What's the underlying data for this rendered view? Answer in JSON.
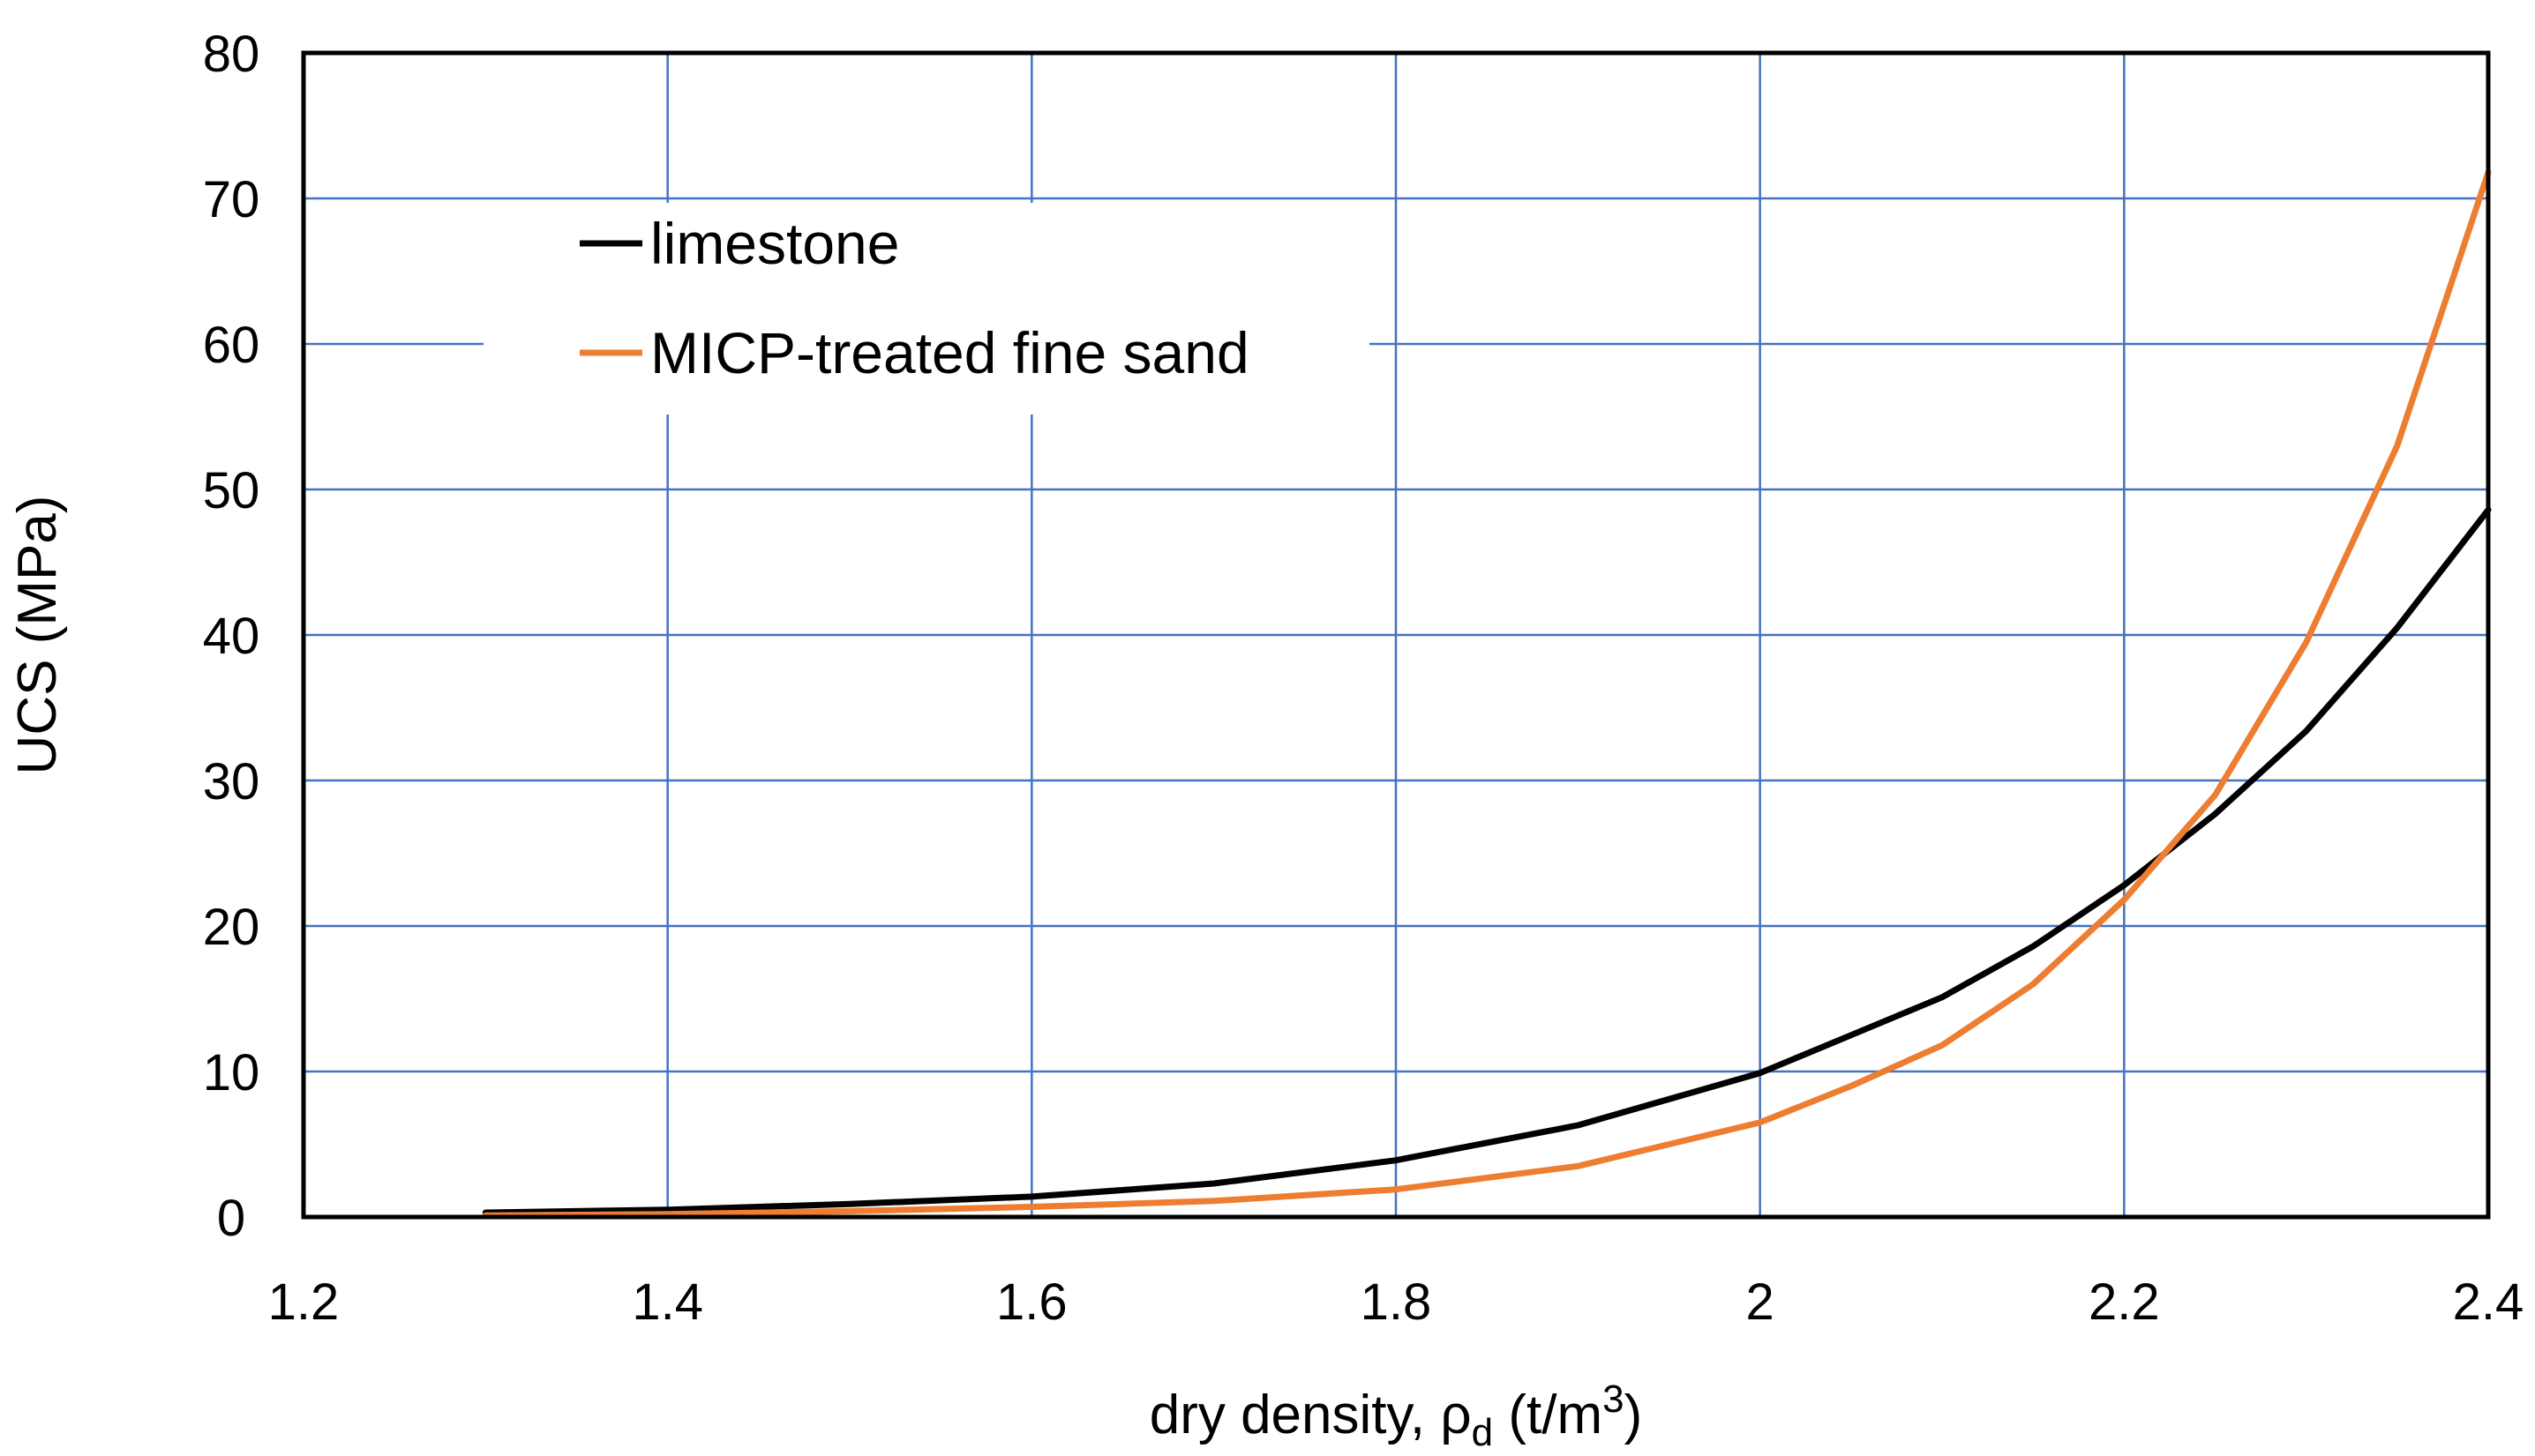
{
  "chart_data": {
    "type": "line",
    "title": "",
    "xlabel": {
      "prefix": "dry density, ",
      "symbol": "ρ",
      "subscript": "d",
      "unit_open": " (t/m",
      "superscript": "3",
      "unit_close": ")"
    },
    "ylabel": "UCS (MPa)",
    "xlim": [
      1.2,
      2.4
    ],
    "ylim": [
      0,
      80
    ],
    "x_ticks": [
      "1.2",
      "1.4",
      "1.6",
      "1.8",
      "2",
      "2.2",
      "2.4"
    ],
    "x_tick_values": [
      1.2,
      1.4,
      1.6,
      1.8,
      2.0,
      2.2,
      2.4
    ],
    "y_ticks": [
      "0",
      "10",
      "20",
      "30",
      "40",
      "50",
      "60",
      "70",
      "80"
    ],
    "y_tick_values": [
      0,
      10,
      20,
      30,
      40,
      50,
      60,
      70,
      80
    ],
    "x_grid_values": [
      1.4,
      1.6,
      1.8,
      2.0,
      2.2
    ],
    "y_grid_values": [
      10,
      20,
      30,
      40,
      50,
      60,
      70
    ],
    "grid": true,
    "grid_color": "#4472c4",
    "legend_position": "top-left",
    "series": [
      {
        "name": "limestone",
        "color": "#000000",
        "x": [
          1.3,
          1.4,
          1.5,
          1.6,
          1.7,
          1.8,
          1.9,
          2.0,
          2.05,
          2.1,
          2.15,
          2.2,
          2.25,
          2.3,
          2.35,
          2.4
        ],
        "y": [
          0.3,
          0.5,
          0.9,
          1.4,
          2.3,
          3.9,
          6.3,
          9.9,
          12.5,
          15.1,
          18.6,
          22.8,
          27.7,
          33.4,
          40.5,
          48.6
        ]
      },
      {
        "name": "MICP-treated fine sand",
        "color": "#ed7d31",
        "x": [
          1.3,
          1.4,
          1.5,
          1.6,
          1.7,
          1.8,
          1.9,
          2.0,
          2.05,
          2.1,
          2.15,
          2.2,
          2.25,
          2.3,
          2.35,
          2.4
        ],
        "y": [
          0.1,
          0.2,
          0.4,
          0.7,
          1.1,
          1.9,
          3.5,
          6.5,
          9.0,
          11.8,
          16.0,
          21.8,
          29.0,
          39.5,
          53.0,
          71.8
        ]
      }
    ]
  }
}
